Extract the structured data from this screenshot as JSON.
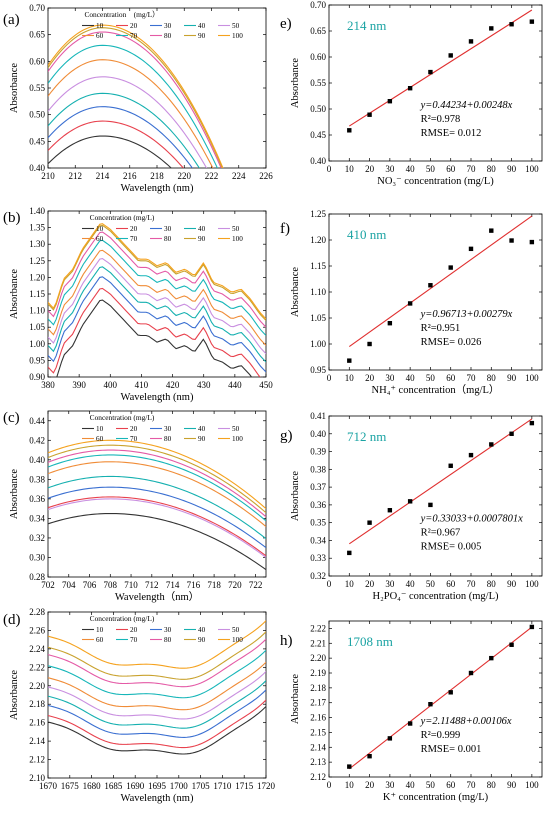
{
  "charts": [
    {
      "id": "a",
      "type": "line",
      "panel": "(a)",
      "xlabel": "Wavelength (nm)",
      "ylabel": "Absorbance",
      "xlim": [
        210,
        226
      ],
      "ylim": [
        0.4,
        0.7
      ],
      "xticks": [
        210,
        212,
        214,
        216,
        218,
        220,
        222,
        224,
        226
      ],
      "yticks": [
        0.4,
        0.45,
        0.5,
        0.55,
        0.6,
        0.65,
        0.7
      ],
      "ydec": 2,
      "peak": 214,
      "width": [
        4.6,
        5.4
      ],
      "fall": 0.4,
      "legend_title": "Concentration　(mg/L）",
      "series": [
        {
          "name": "10",
          "peak": 0.46
        },
        {
          "name": "20",
          "peak": 0.488
        },
        {
          "name": "30",
          "peak": 0.515
        },
        {
          "name": "40",
          "peak": 0.54
        },
        {
          "name": "50",
          "peak": 0.571
        },
        {
          "name": "60",
          "peak": 0.603
        },
        {
          "name": "70",
          "peak": 0.63
        },
        {
          "name": "80",
          "peak": 0.655
        },
        {
          "name": "90",
          "peak": 0.663
        },
        {
          "name": "100",
          "peak": 0.668
        }
      ]
    },
    {
      "id": "b",
      "type": "line",
      "panel": "(b)",
      "xlabel": "Wavelength (nm)",
      "ylabel": "Absorbance",
      "xlim": [
        380,
        450
      ],
      "ylim": [
        0.9,
        1.4
      ],
      "xticks": [
        380,
        390,
        400,
        410,
        420,
        430,
        440,
        450
      ],
      "yticks": [
        0.9,
        0.95,
        1.0,
        1.05,
        1.1,
        1.15,
        1.2,
        1.25,
        1.3,
        1.35,
        1.4
      ],
      "ydec": 2,
      "shape": "visible",
      "legend_title": "Concentration  (mg/L)",
      "shape_x": [
        380,
        382,
        385,
        388,
        391,
        394,
        397,
        400,
        403,
        406,
        409,
        412,
        415,
        418,
        421,
        424,
        427,
        430,
        433,
        436,
        439,
        442,
        445,
        448,
        450
      ],
      "shape_y": [
        0,
        -0.02,
        0.07,
        0.1,
        0.16,
        0.2,
        0.24,
        0.22,
        0.19,
        0.16,
        0.13,
        0.13,
        0.11,
        0.12,
        0.09,
        0.1,
        0.08,
        0.12,
        0.06,
        0.05,
        0.03,
        0.04,
        0.01,
        -0.03,
        -0.05
      ],
      "series": [
        {
          "name": "10",
          "base": 0.895
        },
        {
          "name": "20",
          "base": 0.93
        },
        {
          "name": "30",
          "base": 0.965
        },
        {
          "name": "40",
          "base": 0.995
        },
        {
          "name": "50",
          "base": 1.02
        },
        {
          "name": "60",
          "base": 1.045
        },
        {
          "name": "70",
          "base": 1.075
        },
        {
          "name": "80",
          "base": 1.1
        },
        {
          "name": "90",
          "base": 1.12
        },
        {
          "name": "100",
          "base": 1.125
        }
      ]
    },
    {
      "id": "c",
      "type": "line",
      "panel": "(c)",
      "xlabel": "Wavelength（nm）",
      "ylabel": "Absorbance",
      "xlim": [
        702,
        723
      ],
      "ylim": [
        0.28,
        0.45
      ],
      "xticks": [
        702,
        704,
        706,
        708,
        710,
        712,
        714,
        716,
        718,
        720,
        722
      ],
      "yticks": [
        0.28,
        0.3,
        0.32,
        0.34,
        0.36,
        0.38,
        0.4,
        0.42,
        0.44
      ],
      "ydec": 2,
      "peak": 708,
      "width": [
        7,
        7.5
      ],
      "fall": 0.07,
      "legend_title": "Concentration (mg/L)",
      "series": [
        {
          "name": "10",
          "peak": 0.345
        },
        {
          "name": "20",
          "peak": 0.362
        },
        {
          "name": "30",
          "peak": 0.372
        },
        {
          "name": "40",
          "peak": 0.383
        },
        {
          "name": "50",
          "peak": 0.36
        },
        {
          "name": "60",
          "peak": 0.398
        },
        {
          "name": "70",
          "peak": 0.405
        },
        {
          "name": "80",
          "peak": 0.41
        },
        {
          "name": "90",
          "peak": 0.415
        },
        {
          "name": "100",
          "peak": 0.42
        }
      ]
    },
    {
      "id": "d",
      "type": "line",
      "panel": "(d)",
      "xlabel": "Wavelength (nm)",
      "ylabel": "Absorbance",
      "xlim": [
        1670,
        1720
      ],
      "ylim": [
        2.1,
        2.28
      ],
      "xticks": [
        1670,
        1675,
        1680,
        1685,
        1690,
        1695,
        1700,
        1705,
        1710,
        1715,
        1720
      ],
      "yticks": [
        2.1,
        2.12,
        2.14,
        2.16,
        2.18,
        2.2,
        2.22,
        2.24,
        2.26,
        2.28
      ],
      "ydec": 2,
      "shape": "valley",
      "legend_title": "Concentration (mg/L)",
      "series": [
        {
          "name": "10",
          "min": 2.127
        },
        {
          "name": "20",
          "min": 2.134
        },
        {
          "name": "30",
          "min": 2.145
        },
        {
          "name": "40",
          "min": 2.155
        },
        {
          "name": "50",
          "min": 2.165
        },
        {
          "name": "60",
          "min": 2.175
        },
        {
          "name": "70",
          "min": 2.188
        },
        {
          "name": "80",
          "min": 2.2
        },
        {
          "name": "90",
          "min": 2.208
        },
        {
          "name": "100",
          "min": 2.22
        }
      ]
    },
    {
      "id": "e",
      "type": "scatter",
      "panel": "e)",
      "wavelength": "214 nm",
      "xlabel": "NO₃⁻ concentration (mg/L)",
      "ylabel": "Absorbance",
      "xlim": [
        0,
        105
      ],
      "ylim": [
        0.4,
        0.7
      ],
      "xticks": [
        0,
        10,
        20,
        30,
        40,
        50,
        60,
        70,
        80,
        90,
        100
      ],
      "yticks": [
        0.4,
        0.45,
        0.5,
        0.55,
        0.6,
        0.65,
        0.7
      ],
      "ydec": 2,
      "x": [
        10,
        20,
        30,
        40,
        50,
        60,
        70,
        80,
        90,
        100
      ],
      "y": [
        0.459,
        0.489,
        0.515,
        0.54,
        0.571,
        0.603,
        0.63,
        0.655,
        0.663,
        0.668
      ],
      "fit": {
        "a": 0.44234,
        "b": 0.00248
      },
      "equation": "y=0.44234+0.00248x",
      "r2": "R²=0.978",
      "rmse": "RMSE= 0.012"
    },
    {
      "id": "f",
      "type": "scatter",
      "panel": "f)",
      "wavelength": "410 nm",
      "xlabel": "NH₄⁺ concentration（mg/L）",
      "ylabel": "Absorbance",
      "xlim": [
        0,
        105
      ],
      "ylim": [
        0.95,
        1.25
      ],
      "xticks": [
        0,
        10,
        20,
        30,
        40,
        50,
        60,
        70,
        80,
        90,
        100
      ],
      "yticks": [
        0.95,
        1.0,
        1.05,
        1.1,
        1.15,
        1.2,
        1.25
      ],
      "ydec": 2,
      "x": [
        10,
        20,
        30,
        40,
        50,
        60,
        70,
        80,
        90,
        100
      ],
      "y": [
        0.968,
        1.0,
        1.04,
        1.078,
        1.113,
        1.147,
        1.183,
        1.218,
        1.199,
        1.196
      ],
      "fit": {
        "a": 0.96713,
        "b": 0.00279
      },
      "equation": "y=0.96713+0.00279x",
      "r2": "R²=0.951",
      "rmse": "RMSE= 0.026"
    },
    {
      "id": "g",
      "type": "scatter",
      "panel": "g)",
      "wavelength": "712 nm",
      "xlabel": "H₂PO₄⁻ concentration (mg/L)",
      "ylabel": "Absorbance",
      "xlim": [
        0,
        105
      ],
      "ylim": [
        0.32,
        0.41
      ],
      "xticks": [
        0,
        10,
        20,
        30,
        40,
        50,
        60,
        70,
        80,
        90,
        100
      ],
      "yticks": [
        0.32,
        0.33,
        0.34,
        0.35,
        0.36,
        0.37,
        0.38,
        0.39,
        0.4,
        0.41
      ],
      "ydec": 2,
      "x": [
        10,
        20,
        30,
        40,
        50,
        60,
        70,
        80,
        90,
        100
      ],
      "y": [
        0.333,
        0.35,
        0.357,
        0.362,
        0.36,
        0.382,
        0.388,
        0.394,
        0.4,
        0.406
      ],
      "fit": {
        "a": 0.33033,
        "b": 0.0007801
      },
      "equation": "y=0.33033+0.0007801x",
      "r2": "R²=0.967",
      "rmse": "RMSE= 0.005"
    },
    {
      "id": "h",
      "type": "scatter",
      "panel": "h)",
      "wavelength": "1708 nm",
      "xlabel": "K⁺ concentration (mg/L)",
      "ylabel": "Absorbance",
      "xlim": [
        0,
        105
      ],
      "ylim": [
        2.12,
        2.225
      ],
      "xticks": [
        0,
        10,
        20,
        30,
        40,
        50,
        60,
        70,
        80,
        90,
        100
      ],
      "yticks": [
        2.12,
        2.13,
        2.14,
        2.15,
        2.16,
        2.17,
        2.18,
        2.19,
        2.2,
        2.21,
        2.22
      ],
      "ydec": 2,
      "x": [
        10,
        20,
        30,
        40,
        50,
        60,
        70,
        80,
        90,
        100
      ],
      "y": [
        2.127,
        2.134,
        2.146,
        2.156,
        2.169,
        2.177,
        2.19,
        2.2,
        2.209,
        2.221
      ],
      "fit": {
        "a": 2.11488,
        "b": 0.00106
      },
      "equation": "y=2.11488+0.00106x",
      "r2": "R²=0.999",
      "rmse": "RMSE= 0.001"
    }
  ],
  "colors": {
    "series": [
      "#333333",
      "#e8414d",
      "#3a6fd1",
      "#15b0b0",
      "#c98fe0",
      "#f08c37",
      "#17b6b9",
      "#e45aa6",
      "#c9a22e",
      "#f5a21e"
    ],
    "fit": "#e03030",
    "wavelength_label": "#1aa3a3"
  }
}
